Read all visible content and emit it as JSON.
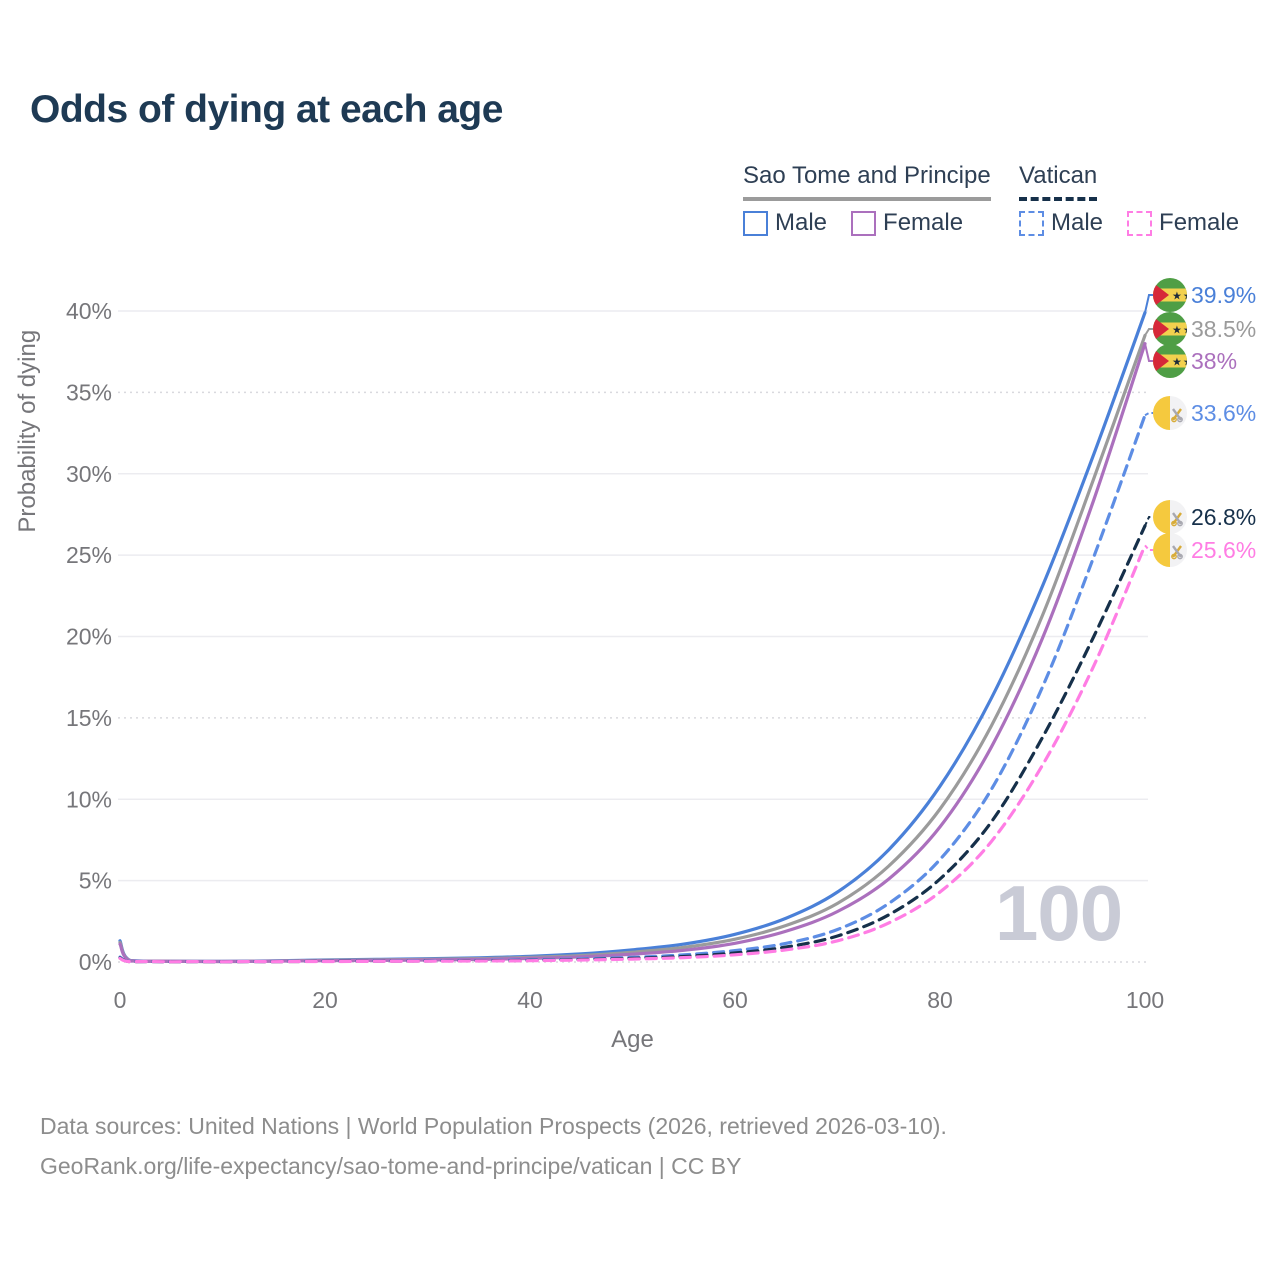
{
  "chart": {
    "title": "Odds of dying at each age"
  },
  "legend": {
    "groups": [
      {
        "label": "Sao Tome and Principe",
        "line_style": "solid",
        "line_color": "#9b9b9b",
        "items": [
          {
            "label": "Male",
            "color": "#4a80d8",
            "dashed": false
          },
          {
            "label": "Female",
            "color": "#ab70bd",
            "dashed": false
          }
        ]
      },
      {
        "label": "Vatican",
        "line_style": "dashed",
        "line_color": "#16304a",
        "items": [
          {
            "label": "Male",
            "color": "#5d8de4",
            "dashed": true
          },
          {
            "label": "Female",
            "color": "#ff7de4",
            "dashed": true
          }
        ]
      }
    ]
  },
  "watermark": {
    "text": "100"
  },
  "footer": {
    "line1": "Data sources: United Nations | World Population Prospects (2026, retrieved 2026-03-10).",
    "line2": "GeoRank.org/life-expectancy/sao-tome-and-principe/vatican | CC BY"
  },
  "chart_data": {
    "type": "line",
    "title": "Odds of dying at each age",
    "xlabel": "Age",
    "ylabel": "Probability of dying",
    "xlim": [
      0,
      100
    ],
    "ylim": [
      0,
      40
    ],
    "grid": true,
    "legend_position": "top-right",
    "x_ticks": [
      {
        "value": 0,
        "label": "0"
      },
      {
        "value": 20,
        "label": "20"
      },
      {
        "value": 40,
        "label": "40"
      },
      {
        "value": 60,
        "label": "60"
      },
      {
        "value": 80,
        "label": "80"
      },
      {
        "value": 100,
        "label": "100"
      }
    ],
    "y_ticks": [
      {
        "value": 0,
        "label": "0%"
      },
      {
        "value": 5,
        "label": "5%"
      },
      {
        "value": 10,
        "label": "10%"
      },
      {
        "value": 15,
        "label": "15%"
      },
      {
        "value": 20,
        "label": "20%"
      },
      {
        "value": 25,
        "label": "25%"
      },
      {
        "value": 30,
        "label": "30%"
      },
      {
        "value": 35,
        "label": "35%"
      },
      {
        "value": 40,
        "label": "40%"
      }
    ],
    "ages": [
      0,
      1,
      5,
      10,
      15,
      20,
      25,
      30,
      35,
      40,
      45,
      50,
      55,
      60,
      65,
      70,
      75,
      80,
      85,
      90,
      95,
      100
    ],
    "series": [
      {
        "id": "sao-tome-male",
        "country": "Sao Tome and Principe",
        "sex": "Male",
        "color": "#4a80d8",
        "dashed": false,
        "flag": "sao-tome",
        "end_label": "39.9%",
        "values": [
          1.3,
          0.09,
          0.05,
          0.04,
          0.07,
          0.12,
          0.16,
          0.2,
          0.26,
          0.35,
          0.5,
          0.75,
          1.1,
          1.7,
          2.7,
          4.3,
          6.9,
          10.8,
          16.2,
          23.1,
          31.2,
          39.9
        ]
      },
      {
        "id": "sao-tome-overall",
        "country": "Sao Tome and Principe",
        "sex": "Both",
        "color": "#9b9b9b",
        "dashed": false,
        "flag": "sao-tome",
        "end_label": "38.5%",
        "values": [
          1.2,
          0.08,
          0.04,
          0.03,
          0.06,
          0.1,
          0.13,
          0.16,
          0.21,
          0.28,
          0.4,
          0.6,
          0.9,
          1.4,
          2.25,
          3.6,
          5.9,
          9.4,
          14.5,
          21.3,
          29.7,
          38.5
        ]
      },
      {
        "id": "sao-tome-female",
        "country": "Sao Tome and Principe",
        "sex": "Female",
        "color": "#ab70bd",
        "dashed": false,
        "flag": "sao-tome",
        "end_label": "38%",
        "values": [
          1.1,
          0.07,
          0.04,
          0.03,
          0.05,
          0.08,
          0.1,
          0.12,
          0.16,
          0.22,
          0.32,
          0.48,
          0.72,
          1.15,
          1.9,
          3.1,
          5.1,
          8.3,
          13.2,
          19.9,
          28.4,
          38.0
        ]
      },
      {
        "id": "vatican-male",
        "country": "Vatican",
        "sex": "Male",
        "color": "#5d8de4",
        "dashed": true,
        "flag": "vatican",
        "end_label": "33.6%",
        "values": [
          0.3,
          0.03,
          0.02,
          0.02,
          0.03,
          0.05,
          0.06,
          0.08,
          0.1,
          0.13,
          0.19,
          0.28,
          0.44,
          0.7,
          1.15,
          2.0,
          3.6,
          6.3,
          10.6,
          16.9,
          24.9,
          33.6
        ]
      },
      {
        "id": "vatican-overall",
        "country": "Vatican",
        "sex": "Both",
        "color": "#16304a",
        "dashed": true,
        "flag": "vatican",
        "end_label": "26.8%",
        "values": [
          0.25,
          0.02,
          0.01,
          0.01,
          0.02,
          0.04,
          0.05,
          0.06,
          0.08,
          0.1,
          0.15,
          0.22,
          0.34,
          0.55,
          0.92,
          1.6,
          2.9,
          5.1,
          8.6,
          13.8,
          20.0,
          26.8
        ]
      },
      {
        "id": "vatican-female",
        "country": "Vatican",
        "sex": "Female",
        "color": "#ff7de4",
        "dashed": true,
        "flag": "vatican",
        "end_label": "25.6%",
        "values": [
          0.22,
          0.02,
          0.01,
          0.01,
          0.02,
          0.03,
          0.04,
          0.05,
          0.06,
          0.08,
          0.12,
          0.18,
          0.27,
          0.44,
          0.75,
          1.3,
          2.4,
          4.3,
          7.4,
          12.1,
          18.2,
          25.6
        ]
      }
    ]
  }
}
